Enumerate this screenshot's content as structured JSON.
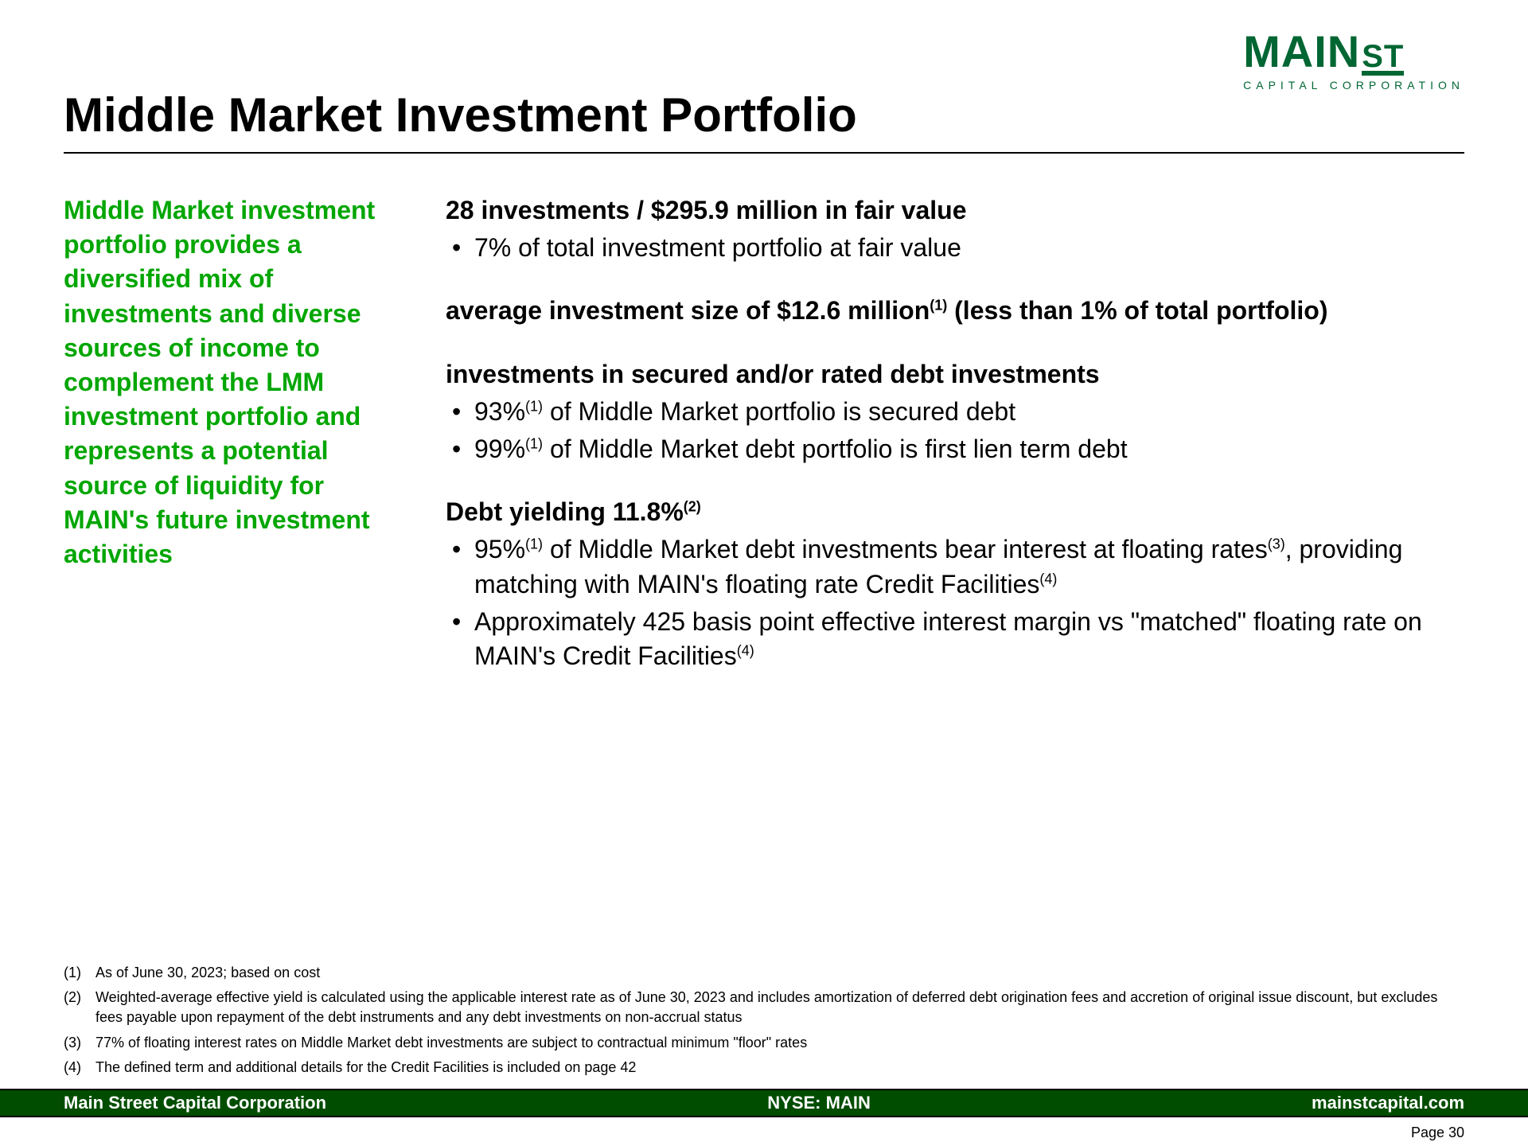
{
  "logo": {
    "main": "MAIN",
    "st": "ST",
    "sub": "CAPITAL CORPORATION"
  },
  "title": "Middle Market Investment Portfolio",
  "sidebar": {
    "text": "Middle Market investment portfolio provides a diversified mix of investments and diverse sources of income to complement the LMM investment portfolio and represents a potential source of liquidity for MAIN's future investment activities"
  },
  "sections": [
    {
      "head": "28 investments / $295.9 million in fair value",
      "bullets": [
        "7% of total investment portfolio at fair value"
      ]
    },
    {
      "head_html": "average investment size of $12.6 million<sup>(1)</sup> (less than 1% of total portfolio)",
      "bullets": []
    },
    {
      "head": "investments in secured and/or rated debt investments",
      "bullets_html": [
        "93%<sup>(1)</sup> of Middle Market portfolio is secured debt",
        "99%<sup>(1)</sup> of Middle Market debt portfolio is first lien term debt"
      ]
    },
    {
      "head_html": "Debt yielding 11.8%<sup>(2)</sup>",
      "bullets_html": [
        "95%<sup>(1)</sup> of Middle Market debt investments bear interest at floating rates<sup>(3)</sup>, providing matching with MAIN's floating rate Credit Facilities<sup>(4)</sup>",
        "Approximately 425 basis point effective interest margin vs \"matched\" floating rate on MAIN's Credit Facilities<sup>(4)</sup>"
      ]
    }
  ],
  "footnotes": [
    {
      "num": "(1)",
      "text": "As of June 30, 2023; based on cost"
    },
    {
      "num": "(2)",
      "text": "Weighted-average effective yield is calculated using the applicable interest rate as of June 30, 2023 and includes amortization of deferred debt origination fees and accretion of original issue discount, but excludes fees payable upon repayment of the debt instruments and any debt investments on non-accrual status"
    },
    {
      "num": "(3)",
      "text": "77% of floating interest rates on Middle Market debt investments are subject to contractual minimum \"floor\" rates"
    },
    {
      "num": "(4)",
      "text": "The defined term and additional details for the Credit Facilities is included on page 42"
    }
  ],
  "footer": {
    "left": "Main Street Capital Corporation",
    "center": "NYSE: MAIN",
    "right": "mainstcapital.com"
  },
  "page": "Page  30"
}
